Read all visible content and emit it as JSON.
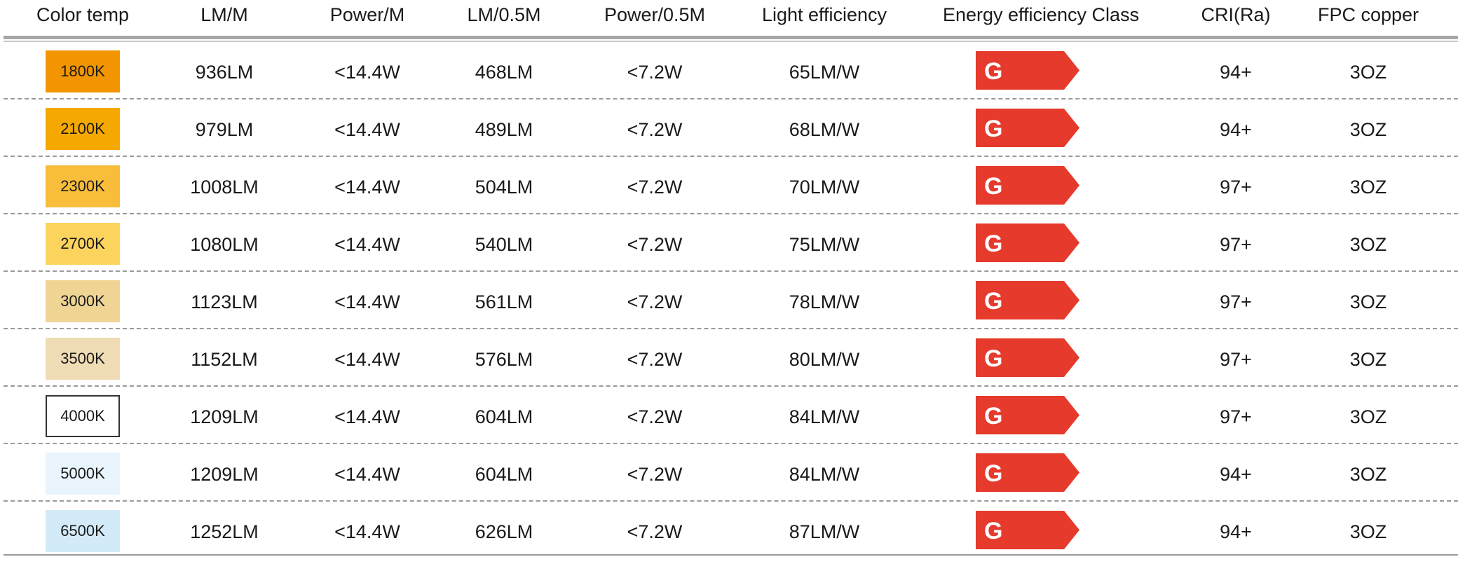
{
  "headers": [
    "Color temp",
    "LM/M",
    "Power/M",
    "LM/0.5M",
    "Power/0.5M",
    "Light efficiency",
    "Energy efficiency Class",
    "CRI(Ra)",
    "FPC copper"
  ],
  "rows": [
    {
      "color_temp": "1800K",
      "swatch_color": "#f29500",
      "lm_m": "936LM",
      "power_m": "<14.4W",
      "lm_half": "468LM",
      "power_half": "<7.2W",
      "efficiency": "65LM/W",
      "energy_class": "G",
      "cri": "94+",
      "copper": "3OZ"
    },
    {
      "color_temp": "2100K",
      "swatch_color": "#f5a800",
      "lm_m": "979LM",
      "power_m": "<14.4W",
      "lm_half": "489LM",
      "power_half": "<7.2W",
      "efficiency": "68LM/W",
      "energy_class": "G",
      "cri": "94+",
      "copper": "3OZ"
    },
    {
      "color_temp": "2300K",
      "swatch_color": "#f8bd3a",
      "lm_m": "1008LM",
      "power_m": "<14.4W",
      "lm_half": "504LM",
      "power_half": "<7.2W",
      "efficiency": "70LM/W",
      "energy_class": "G",
      "cri": "97+",
      "copper": "3OZ"
    },
    {
      "color_temp": "2700K",
      "swatch_color": "#fcd35d",
      "lm_m": "1080LM",
      "power_m": "<14.4W",
      "lm_half": "540LM",
      "power_half": "<7.2W",
      "efficiency": "75LM/W",
      "energy_class": "G",
      "cri": "97+",
      "copper": "3OZ"
    },
    {
      "color_temp": "3000K",
      "swatch_color": "#efd494",
      "lm_m": "1123LM",
      "power_m": "<14.4W",
      "lm_half": "561LM",
      "power_half": "<7.2W",
      "efficiency": "78LM/W",
      "energy_class": "G",
      "cri": "97+",
      "copper": "3OZ"
    },
    {
      "color_temp": "3500K",
      "swatch_color": "#efdcb4",
      "lm_m": "1152LM",
      "power_m": "<14.4W",
      "lm_half": "576LM",
      "power_half": "<7.2W",
      "efficiency": "80LM/W",
      "energy_class": "G",
      "cri": "97+",
      "copper": "3OZ"
    },
    {
      "color_temp": "4000K",
      "swatch_color": "#ffffff",
      "lm_m": "1209LM",
      "power_m": "<14.4W",
      "lm_half": "604LM",
      "power_half": "<7.2W",
      "efficiency": "84LM/W",
      "energy_class": "G",
      "cri": "97+",
      "copper": "3OZ"
    },
    {
      "color_temp": "5000K",
      "swatch_color": "#e9f4fc",
      "lm_m": "1209LM",
      "power_m": "<14.4W",
      "lm_half": "604LM",
      "power_half": "<7.2W",
      "efficiency": "84LM/W",
      "energy_class": "G",
      "cri": "94+",
      "copper": "3OZ"
    },
    {
      "color_temp": "6500K",
      "swatch_color": "#d3ebf8",
      "lm_m": "1252LM",
      "power_m": "<14.4W",
      "lm_half": "626LM",
      "power_half": "<7.2W",
      "efficiency": "87LM/W",
      "energy_class": "G",
      "cri": "94+",
      "copper": "3OZ"
    }
  ],
  "colors": {
    "badge": "#e53a2c",
    "swatch_border_white": "#333333"
  }
}
